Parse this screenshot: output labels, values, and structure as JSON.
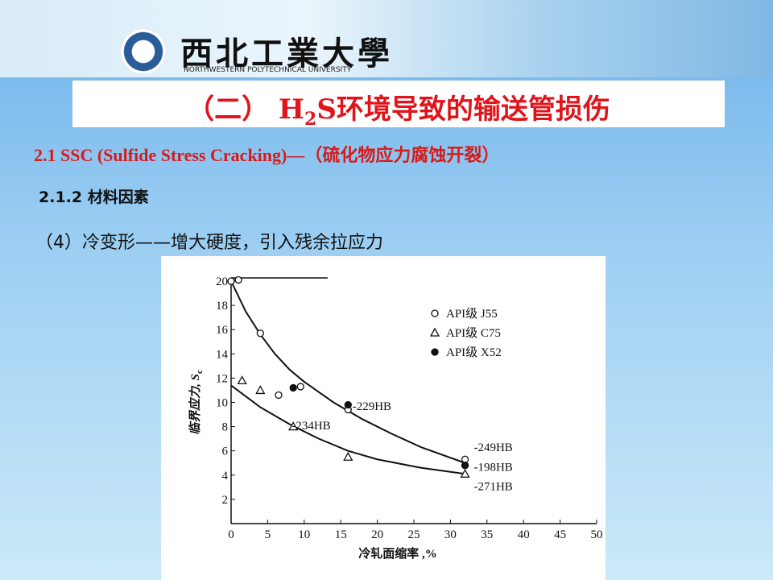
{
  "header": {
    "university": "西北工業大學",
    "university_en": "NORTHWESTERN POLYTECHNICAL UNIVERSITY"
  },
  "title_parts": [
    "（二） H",
    "2",
    "S环境导致的输送管损伤"
  ],
  "subtitle": "2.1  SSC (Sulfide Stress Cracking)—（硫化物应力腐蚀开裂）",
  "section": "2.1.2 材料因素",
  "point": "（4）冷变形——增大硬度，引入残余拉应力",
  "chart_data": {
    "type": "scatter",
    "xlabel": "冷轧面缩率 ,%",
    "ylabel": "临界应力, S",
    "ylabel_sub": "c",
    "xlim": [
      0,
      50
    ],
    "ylim": [
      0,
      20
    ],
    "xticks": [
      0,
      5,
      10,
      15,
      20,
      25,
      30,
      35,
      40,
      45,
      50
    ],
    "yticks": [
      2,
      4,
      6,
      8,
      10,
      12,
      14,
      16,
      18,
      20
    ],
    "series": [
      {
        "name": "API级 J55",
        "marker": "open-circle",
        "x": [
          0,
          1,
          4,
          6.5,
          9.5,
          16,
          32,
          32
        ],
        "values": [
          20,
          20.1,
          15.7,
          10.6,
          11.3,
          9.4,
          5.3,
          4.8
        ]
      },
      {
        "name": "API级 C75",
        "marker": "triangle",
        "x": [
          1.5,
          4,
          8.5,
          16,
          32
        ],
        "values": [
          11.8,
          11.0,
          8.0,
          5.5,
          4.1
        ]
      },
      {
        "name": "API级 X52",
        "marker": "filled-circle",
        "x": [
          8.5,
          16,
          32
        ],
        "values": [
          11.2,
          9.8,
          4.8
        ]
      }
    ],
    "fit_curves": [
      {
        "x": [
          0,
          2,
          4,
          6,
          8,
          10,
          14,
          18,
          22,
          26,
          32
        ],
        "values": [
          20,
          17.5,
          15.6,
          14.0,
          12.7,
          11.7,
          10.0,
          8.6,
          7.4,
          6.3,
          5.0
        ]
      },
      {
        "x": [
          0,
          4,
          8,
          12,
          16,
          20,
          26,
          32
        ],
        "values": [
          11.4,
          9.6,
          8.2,
          7.0,
          6.0,
          5.3,
          4.6,
          4.1
        ]
      }
    ],
    "annotations": [
      {
        "text": "-229HB",
        "x": 16.6,
        "y": 9.7
      },
      {
        "text": "-234HB",
        "x": 8.3,
        "y": 8.1
      },
      {
        "text": "-249HB",
        "x": 33.2,
        "y": 6.3
      },
      {
        "text": "-198HB",
        "x": 33.2,
        "y": 4.7
      },
      {
        "text": "-271HB",
        "x": 33.2,
        "y": 3.1
      }
    ],
    "legend": "upper right"
  }
}
